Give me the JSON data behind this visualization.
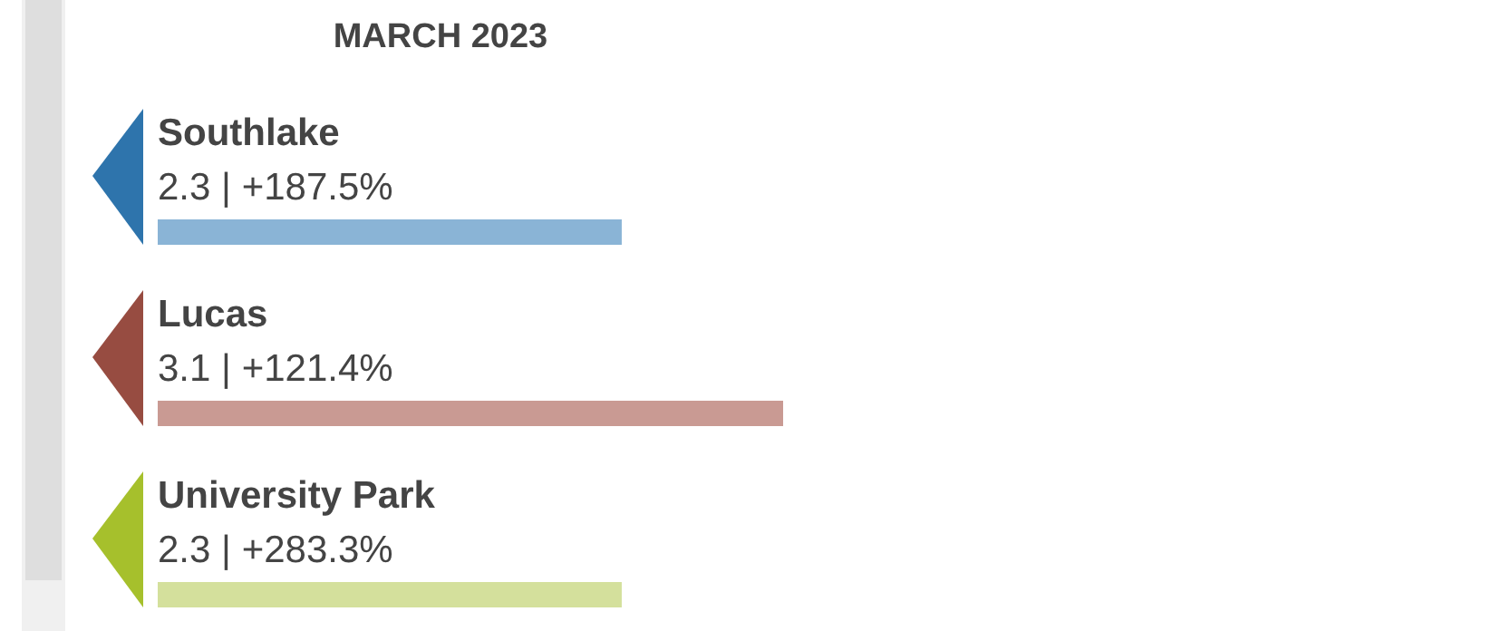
{
  "chart_data": {
    "type": "bar",
    "orientation": "horizontal",
    "title": "MARCH 2023",
    "categories": [
      "Southlake",
      "Lucas",
      "University Park"
    ],
    "values": [
      2.3,
      3.1,
      2.3
    ],
    "colors": [
      "#8ab4d6",
      "#c99a93",
      "#d4e09c"
    ],
    "value_labels": [
      "2.3 | +187.5%",
      "3.1 | +121.4%",
      "2.3 | +283.3%"
    ]
  }
}
